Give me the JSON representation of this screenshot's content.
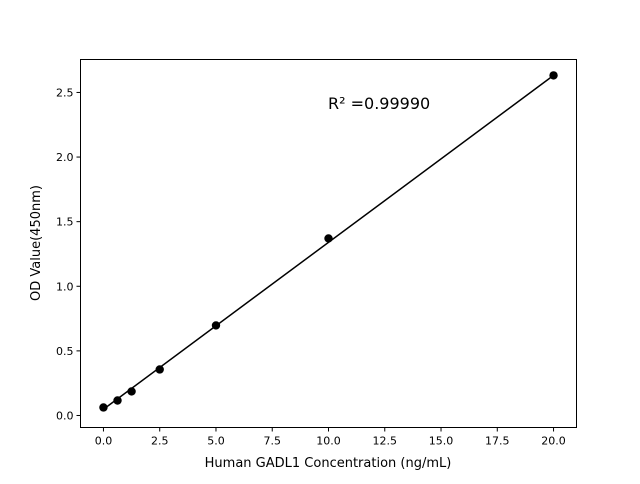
{
  "chart_data": {
    "type": "scatter",
    "title": "",
    "xlabel": "Human GADL1 Concentration (ng/mL)",
    "ylabel": "OD Value(450nm)",
    "xlim": [
      -1.02,
      21.02
    ],
    "ylim": [
      -0.093,
      2.755
    ],
    "x_ticks": [
      "0.0",
      "2.5",
      "5.0",
      "7.5",
      "10.0",
      "12.5",
      "15.0",
      "17.5",
      "20.0"
    ],
    "y_ticks": [
      "0.0",
      "0.5",
      "1.0",
      "1.5",
      "2.0",
      "2.5"
    ],
    "grid": false,
    "series": [
      {
        "x": [
          0,
          0.625,
          1.25,
          2.5,
          5,
          10,
          20
        ],
        "y": [
          0.062,
          0.116,
          0.186,
          0.356,
          0.697,
          1.37,
          2.632
        ],
        "color": "#000000",
        "marker": "circle",
        "line": "fit"
      }
    ],
    "fit_line": {
      "x": [
        0,
        20
      ],
      "y": [
        0.048,
        2.632
      ]
    },
    "annotation": "R² =0.99990"
  }
}
